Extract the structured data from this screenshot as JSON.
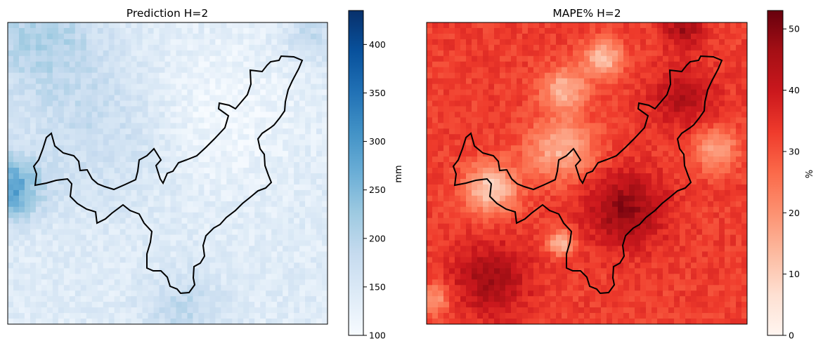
{
  "chart_data": [
    {
      "type": "heatmap",
      "title": "Prediction H=2",
      "colormap": "Blues",
      "colorbar": {
        "label": "mm",
        "range": [
          100,
          435
        ],
        "ticks": [
          100,
          150,
          200,
          250,
          300,
          350,
          400
        ],
        "tick_labels": [
          "100",
          "150",
          "200",
          "250",
          "300",
          "350",
          "400"
        ]
      },
      "grid": false,
      "axes_ticks_visible": false,
      "overlay": "region boundary outline (black)"
    },
    {
      "type": "heatmap",
      "title": "MAPE% H=2",
      "colormap": "Reds",
      "colorbar": {
        "label": "%",
        "range": [
          0,
          53
        ],
        "ticks": [
          0,
          10,
          20,
          30,
          40,
          50
        ],
        "tick_labels": [
          "0",
          "10",
          "20",
          "30",
          "40",
          "50"
        ]
      },
      "grid": false,
      "axes_ticks_visible": false,
      "overlay": "region boundary outline (black)"
    }
  ]
}
